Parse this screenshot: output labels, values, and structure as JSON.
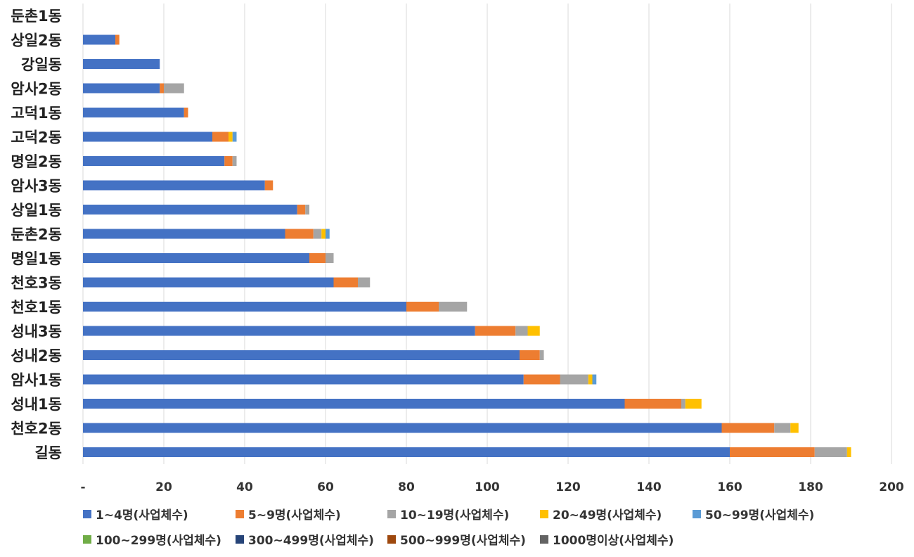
{
  "chart_data": {
    "type": "bar",
    "orientation": "horizontal",
    "stacked": true,
    "title": "",
    "xlabel": "",
    "ylabel": "",
    "xlim": [
      0,
      200
    ],
    "xticks": [
      "-",
      "20",
      "40",
      "60",
      "80",
      "100",
      "120",
      "140",
      "160",
      "180",
      "200"
    ],
    "grid": true,
    "legend_position": "bottom",
    "categories": [
      "둔촌1동",
      "상일2동",
      "강일동",
      "암사2동",
      "고덕1동",
      "고덕2동",
      "명일2동",
      "암사3동",
      "상일1동",
      "둔촌2동",
      "명일1동",
      "천호3동",
      "천호1동",
      "성내3동",
      "성내2동",
      "암사1동",
      "성내1동",
      "천호2동",
      "길동"
    ],
    "series": [
      {
        "name": "1~4명(사업체수)",
        "color": "#4472C4",
        "values": [
          0,
          8,
          19,
          19,
          25,
          32,
          35,
          45,
          53,
          50,
          56,
          62,
          80,
          97,
          108,
          109,
          134,
          158,
          160
        ]
      },
      {
        "name": "5~9명(사업체수)",
        "color": "#ED7D31",
        "values": [
          0,
          1,
          0,
          1,
          1,
          4,
          2,
          2,
          2,
          7,
          4,
          6,
          8,
          10,
          5,
          9,
          14,
          13,
          21
        ]
      },
      {
        "name": "10~19명(사업체수)",
        "color": "#A5A5A5",
        "values": [
          0,
          0,
          0,
          5,
          0,
          0,
          1,
          0,
          1,
          2,
          2,
          3,
          7,
          3,
          1,
          7,
          1,
          4,
          8
        ]
      },
      {
        "name": "20~49명(사업체수)",
        "color": "#FFC000",
        "values": [
          0,
          0,
          0,
          0,
          0,
          1,
          0,
          0,
          0,
          1,
          0,
          0,
          0,
          3,
          0,
          1,
          4,
          2,
          1
        ]
      },
      {
        "name": "50~99명(사업체수)",
        "color": "#5B9BD5",
        "values": [
          0,
          0,
          0,
          0,
          0,
          1,
          0,
          0,
          0,
          1,
          0,
          0,
          0,
          0,
          0,
          1,
          0,
          0,
          0
        ]
      },
      {
        "name": "100~299명(사업체수)",
        "color": "#70AD47",
        "values": [
          0,
          0,
          0,
          0,
          0,
          0,
          0,
          0,
          0,
          0,
          0,
          0,
          0,
          0,
          0,
          0,
          0,
          0,
          0
        ]
      },
      {
        "name": "300~499명(사업체수)",
        "color": "#264478",
        "values": [
          0,
          0,
          0,
          0,
          0,
          0,
          0,
          0,
          0,
          0,
          0,
          0,
          0,
          0,
          0,
          0,
          0,
          0,
          0
        ]
      },
      {
        "name": "500~999명(사업체수)",
        "color": "#9E480E",
        "values": [
          0,
          0,
          0,
          0,
          0,
          0,
          0,
          0,
          0,
          0,
          0,
          0,
          0,
          0,
          0,
          0,
          0,
          0,
          0
        ]
      },
      {
        "name": "1000명이상(사업체수)",
        "color": "#636363",
        "values": [
          0,
          0,
          0,
          0,
          0,
          0,
          0,
          0,
          0,
          0,
          0,
          0,
          0,
          0,
          0,
          0,
          0,
          0,
          0
        ]
      }
    ]
  }
}
